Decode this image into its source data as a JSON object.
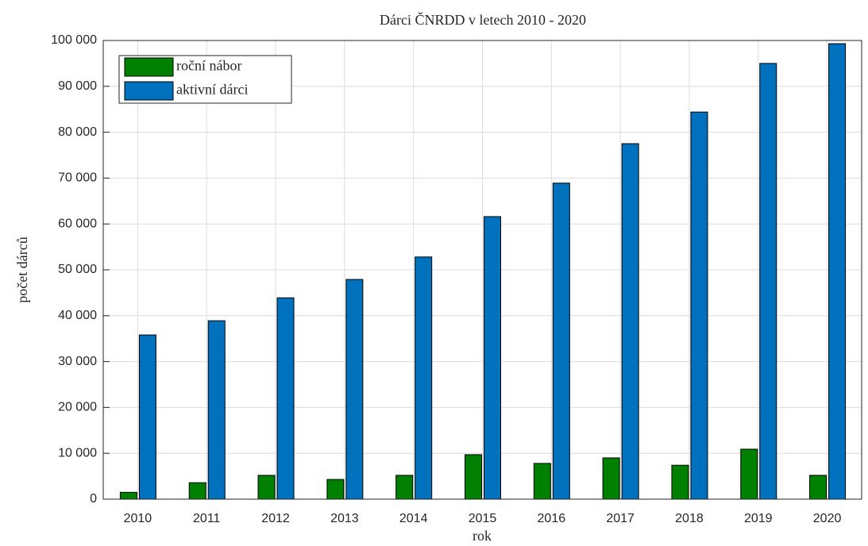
{
  "chart_data": {
    "type": "bar",
    "title": "Dárci ČNRDD v letech 2010 - 2020",
    "x_label": "rok",
    "y_label": "počet dárců",
    "categories": [
      "2010",
      "2011",
      "2012",
      "2013",
      "2014",
      "2015",
      "2016",
      "2017",
      "2018",
      "2019",
      "2020"
    ],
    "series": [
      {
        "name": "roční nábor",
        "color": "#008000",
        "values": [
          1500,
          3600,
          5200,
          4300,
          5200,
          9700,
          7800,
          9000,
          7400,
          10900,
          5200
        ]
      },
      {
        "name": "aktivní dárci",
        "color": "#0072bd",
        "values": [
          35800,
          38900,
          43900,
          47900,
          52800,
          61600,
          68900,
          77500,
          84400,
          95000,
          99300
        ]
      }
    ],
    "ylim": [
      0,
      100000
    ],
    "yticks": [
      0,
      {
        "value": 10000,
        "label": "10 000"
      },
      {
        "value": 20000,
        "label": "20 000"
      },
      {
        "value": 30000,
        "label": "30 000"
      },
      {
        "value": 40000,
        "label": "40 000"
      },
      {
        "value": 50000,
        "label": "50 000"
      },
      {
        "value": 60000,
        "label": "60 000"
      },
      {
        "value": 70000,
        "label": "70 000"
      },
      {
        "value": 80000,
        "label": "80 000"
      },
      {
        "value": 90000,
        "label": "90 000"
      },
      {
        "value": 100000,
        "label": "100 000"
      }
    ],
    "grid": true,
    "legend": "upper left"
  }
}
